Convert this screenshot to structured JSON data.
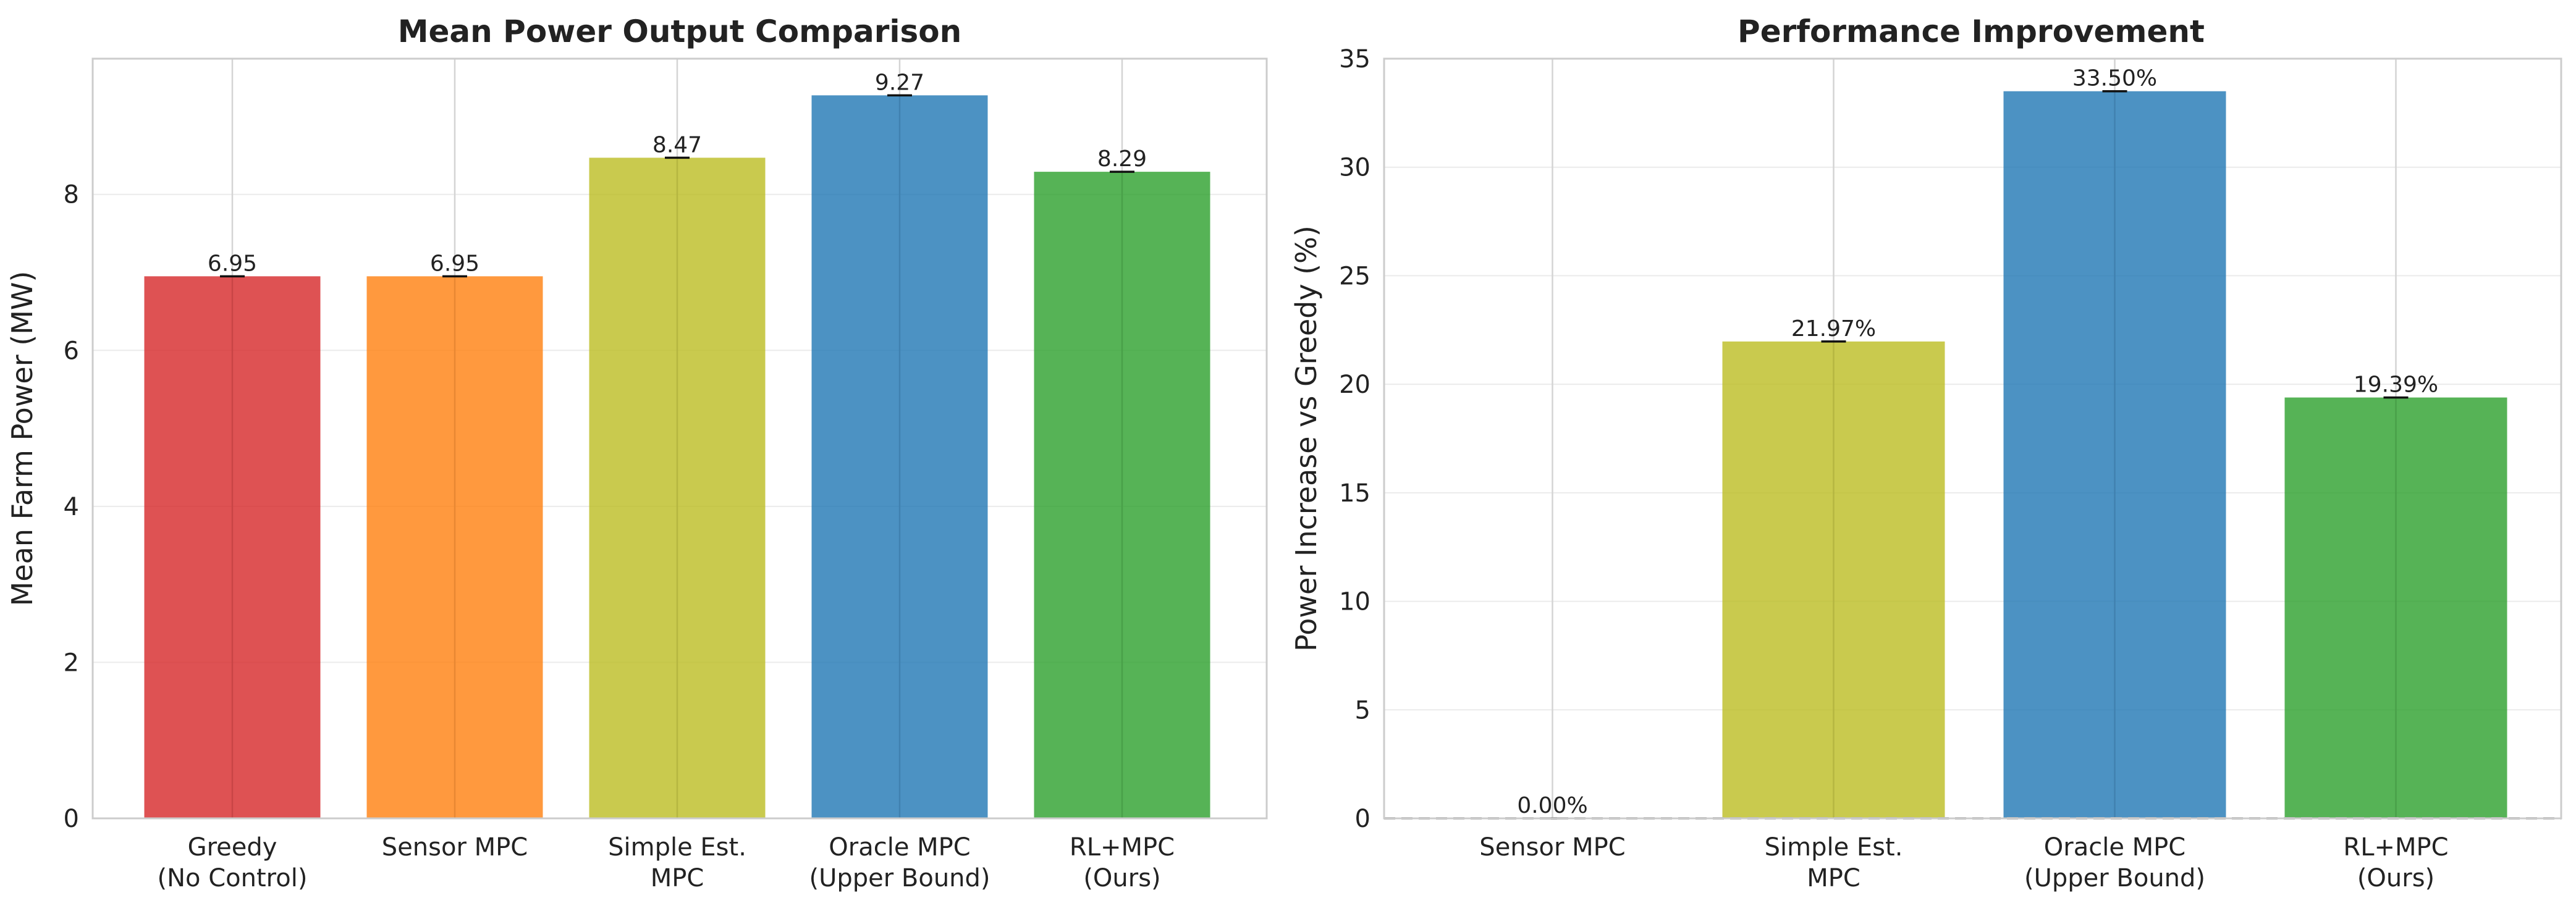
{
  "chart_data": [
    {
      "type": "bar",
      "title": "Mean Power Output Comparison",
      "xlabel": "",
      "ylabel": "Mean Farm Power (MW)",
      "ylim": [
        0,
        9.74
      ],
      "yticks": [
        0,
        2,
        4,
        6,
        8
      ],
      "categories": [
        [
          "Greedy",
          "(No Control)"
        ],
        [
          "Sensor MPC"
        ],
        [
          "Simple Est.",
          "MPC"
        ],
        [
          "Oracle MPC",
          "(Upper Bound)"
        ],
        [
          "RL+MPC",
          "(Ours)"
        ]
      ],
      "values": [
        6.95,
        6.95,
        8.47,
        9.27,
        8.29
      ],
      "value_labels": [
        "6.95",
        "6.95",
        "8.47",
        "9.27",
        "8.29"
      ],
      "colors": [
        "#d62728",
        "#ff7f0e",
        "#bcbd22",
        "#1f77b4",
        "#2ca02c"
      ],
      "grid": true
    },
    {
      "type": "bar",
      "title": "Performance Improvement",
      "xlabel": "",
      "ylabel": "Power Increase vs Greedy (%)",
      "ylim": [
        0,
        35
      ],
      "yticks": [
        0,
        5,
        10,
        15,
        20,
        25,
        30,
        35
      ],
      "categories": [
        [
          "Sensor MPC"
        ],
        [
          "Simple Est.",
          "MPC"
        ],
        [
          "Oracle MPC",
          "(Upper Bound)"
        ],
        [
          "RL+MPC",
          "(Ours)"
        ]
      ],
      "values": [
        0.0,
        21.97,
        33.5,
        19.39
      ],
      "value_labels": [
        "0.00%",
        "21.97%",
        "33.50%",
        "19.39%"
      ],
      "colors": [
        "#ff7f0e",
        "#bcbd22",
        "#1f77b4",
        "#2ca02c"
      ],
      "reference_line": 0,
      "grid": true
    }
  ]
}
